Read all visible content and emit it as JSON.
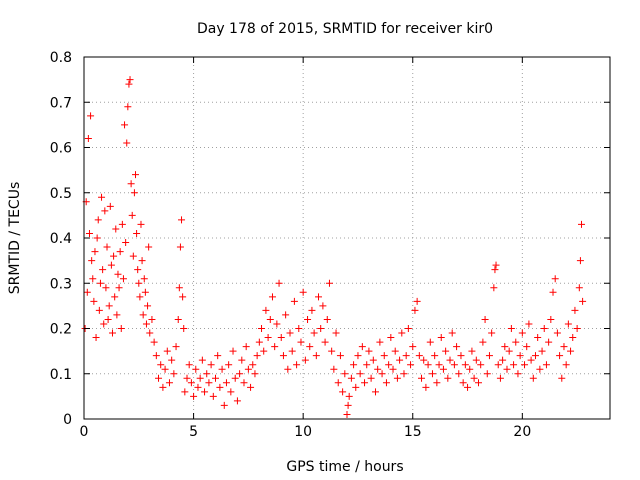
{
  "chart_data": {
    "type": "scatter",
    "title": "Day 178 of 2015, SRMTID for receiver kir0",
    "xlabel": "GPS time / hours",
    "ylabel": "SRMTID / TECUs",
    "xlim": [
      0,
      24
    ],
    "ylim": [
      0,
      0.8
    ],
    "xticks": [
      0,
      5,
      10,
      15,
      20
    ],
    "xtick_labels": [
      "0",
      "5",
      "10",
      "15",
      "20"
    ],
    "yticks": [
      0,
      0.1,
      0.2,
      0.3,
      0.4,
      0.5,
      0.6,
      0.7,
      0.8
    ],
    "ytick_labels": [
      "0",
      "0.1",
      "0.2",
      "0.3",
      "0.4",
      "0.5",
      "0.6",
      "0.7",
      "0.8"
    ],
    "grid": true,
    "marker": "plus",
    "color": "#ff0000",
    "series": [
      {
        "name": "SRMTID",
        "points": [
          [
            0.05,
            0.2
          ],
          [
            0.1,
            0.48
          ],
          [
            0.15,
            0.28
          ],
          [
            0.2,
            0.62
          ],
          [
            0.25,
            0.41
          ],
          [
            0.3,
            0.67
          ],
          [
            0.35,
            0.35
          ],
          [
            0.4,
            0.31
          ],
          [
            0.45,
            0.26
          ],
          [
            0.5,
            0.37
          ],
          [
            0.55,
            0.18
          ],
          [
            0.6,
            0.4
          ],
          [
            0.65,
            0.44
          ],
          [
            0.7,
            0.24
          ],
          [
            0.75,
            0.3
          ],
          [
            0.8,
            0.49
          ],
          [
            0.85,
            0.33
          ],
          [
            0.9,
            0.21
          ],
          [
            0.95,
            0.46
          ],
          [
            1.0,
            0.29
          ],
          [
            1.05,
            0.38
          ],
          [
            1.1,
            0.22
          ],
          [
            1.15,
            0.25
          ],
          [
            1.2,
            0.47
          ],
          [
            1.25,
            0.34
          ],
          [
            1.3,
            0.19
          ],
          [
            1.35,
            0.36
          ],
          [
            1.4,
            0.27
          ],
          [
            1.45,
            0.42
          ],
          [
            1.5,
            0.23
          ],
          [
            1.55,
            0.32
          ],
          [
            1.6,
            0.29
          ],
          [
            1.65,
            0.37
          ],
          [
            1.7,
            0.2
          ],
          [
            1.75,
            0.43
          ],
          [
            1.8,
            0.31
          ],
          [
            1.85,
            0.65
          ],
          [
            1.9,
            0.39
          ],
          [
            1.95,
            0.61
          ],
          [
            2.0,
            0.69
          ],
          [
            2.05,
            0.74
          ],
          [
            2.1,
            0.75
          ],
          [
            2.15,
            0.52
          ],
          [
            2.2,
            0.45
          ],
          [
            2.25,
            0.36
          ],
          [
            2.3,
            0.5
          ],
          [
            2.35,
            0.54
          ],
          [
            2.4,
            0.41
          ],
          [
            2.45,
            0.33
          ],
          [
            2.5,
            0.3
          ],
          [
            2.55,
            0.27
          ],
          [
            2.6,
            0.43
          ],
          [
            2.65,
            0.35
          ],
          [
            2.7,
            0.23
          ],
          [
            2.75,
            0.31
          ],
          [
            2.8,
            0.28
          ],
          [
            2.85,
            0.21
          ],
          [
            2.9,
            0.25
          ],
          [
            2.95,
            0.38
          ],
          [
            3.0,
            0.19
          ],
          [
            3.1,
            0.22
          ],
          [
            3.2,
            0.17
          ],
          [
            3.3,
            0.14
          ],
          [
            3.4,
            0.09
          ],
          [
            3.5,
            0.12
          ],
          [
            3.6,
            0.07
          ],
          [
            3.7,
            0.11
          ],
          [
            3.8,
            0.15
          ],
          [
            3.9,
            0.08
          ],
          [
            4.0,
            0.13
          ],
          [
            4.1,
            0.1
          ],
          [
            4.2,
            0.16
          ],
          [
            4.3,
            0.22
          ],
          [
            4.35,
            0.29
          ],
          [
            4.4,
            0.38
          ],
          [
            4.45,
            0.44
          ],
          [
            4.5,
            0.27
          ],
          [
            4.55,
            0.2
          ],
          [
            4.6,
            0.06
          ],
          [
            4.7,
            0.09
          ],
          [
            4.8,
            0.12
          ],
          [
            4.9,
            0.08
          ],
          [
            5.0,
            0.05
          ],
          [
            5.1,
            0.11
          ],
          [
            5.2,
            0.07
          ],
          [
            5.3,
            0.09
          ],
          [
            5.4,
            0.13
          ],
          [
            5.5,
            0.06
          ],
          [
            5.6,
            0.1
          ],
          [
            5.7,
            0.08
          ],
          [
            5.8,
            0.12
          ],
          [
            5.9,
            0.05
          ],
          [
            6.0,
            0.09
          ],
          [
            6.1,
            0.14
          ],
          [
            6.2,
            0.07
          ],
          [
            6.3,
            0.11
          ],
          [
            6.4,
            0.03
          ],
          [
            6.5,
            0.08
          ],
          [
            6.6,
            0.12
          ],
          [
            6.7,
            0.06
          ],
          [
            6.8,
            0.15
          ],
          [
            6.9,
            0.09
          ],
          [
            7.0,
            0.04
          ],
          [
            7.1,
            0.1
          ],
          [
            7.2,
            0.13
          ],
          [
            7.3,
            0.08
          ],
          [
            7.4,
            0.16
          ],
          [
            7.5,
            0.11
          ],
          [
            7.6,
            0.07
          ],
          [
            7.7,
            0.12
          ],
          [
            7.8,
            0.1
          ],
          [
            7.9,
            0.14
          ],
          [
            8.0,
            0.17
          ],
          [
            8.1,
            0.2
          ],
          [
            8.2,
            0.15
          ],
          [
            8.3,
            0.24
          ],
          [
            8.4,
            0.18
          ],
          [
            8.5,
            0.22
          ],
          [
            8.6,
            0.27
          ],
          [
            8.7,
            0.16
          ],
          [
            8.8,
            0.21
          ],
          [
            8.9,
            0.3
          ],
          [
            9.0,
            0.18
          ],
          [
            9.1,
            0.14
          ],
          [
            9.2,
            0.23
          ],
          [
            9.3,
            0.11
          ],
          [
            9.4,
            0.19
          ],
          [
            9.5,
            0.15
          ],
          [
            9.6,
            0.26
          ],
          [
            9.7,
            0.12
          ],
          [
            9.8,
            0.2
          ],
          [
            9.9,
            0.17
          ],
          [
            10.0,
            0.28
          ],
          [
            10.1,
            0.13
          ],
          [
            10.2,
            0.22
          ],
          [
            10.3,
            0.16
          ],
          [
            10.4,
            0.24
          ],
          [
            10.5,
            0.19
          ],
          [
            10.6,
            0.14
          ],
          [
            10.7,
            0.27
          ],
          [
            10.8,
            0.2
          ],
          [
            10.9,
            0.25
          ],
          [
            11.0,
            0.17
          ],
          [
            11.1,
            0.22
          ],
          [
            11.2,
            0.3
          ],
          [
            11.3,
            0.15
          ],
          [
            11.4,
            0.11
          ],
          [
            11.5,
            0.19
          ],
          [
            11.6,
            0.08
          ],
          [
            11.7,
            0.14
          ],
          [
            11.8,
            0.06
          ],
          [
            11.9,
            0.1
          ],
          [
            12.0,
            0.01
          ],
          [
            12.05,
            0.03
          ],
          [
            12.1,
            0.05
          ],
          [
            12.2,
            0.09
          ],
          [
            12.3,
            0.12
          ],
          [
            12.4,
            0.07
          ],
          [
            12.5,
            0.14
          ],
          [
            12.6,
            0.1
          ],
          [
            12.7,
            0.16
          ],
          [
            12.8,
            0.08
          ],
          [
            12.9,
            0.12
          ],
          [
            13.0,
            0.15
          ],
          [
            13.1,
            0.09
          ],
          [
            13.2,
            0.13
          ],
          [
            13.3,
            0.06
          ],
          [
            13.4,
            0.11
          ],
          [
            13.5,
            0.17
          ],
          [
            13.6,
            0.1
          ],
          [
            13.7,
            0.14
          ],
          [
            13.8,
            0.08
          ],
          [
            13.9,
            0.12
          ],
          [
            14.0,
            0.18
          ],
          [
            14.1,
            0.11
          ],
          [
            14.2,
            0.15
          ],
          [
            14.3,
            0.09
          ],
          [
            14.4,
            0.13
          ],
          [
            14.5,
            0.19
          ],
          [
            14.6,
            0.1
          ],
          [
            14.7,
            0.14
          ],
          [
            14.8,
            0.2
          ],
          [
            14.9,
            0.12
          ],
          [
            15.0,
            0.16
          ],
          [
            15.1,
            0.24
          ],
          [
            15.2,
            0.26
          ],
          [
            15.3,
            0.14
          ],
          [
            15.4,
            0.09
          ],
          [
            15.5,
            0.13
          ],
          [
            15.6,
            0.07
          ],
          [
            15.7,
            0.12
          ],
          [
            15.8,
            0.17
          ],
          [
            15.9,
            0.1
          ],
          [
            16.0,
            0.14
          ],
          [
            16.1,
            0.08
          ],
          [
            16.2,
            0.12
          ],
          [
            16.3,
            0.18
          ],
          [
            16.4,
            0.11
          ],
          [
            16.5,
            0.15
          ],
          [
            16.6,
            0.09
          ],
          [
            16.7,
            0.13
          ],
          [
            16.8,
            0.19
          ],
          [
            16.9,
            0.12
          ],
          [
            17.0,
            0.16
          ],
          [
            17.1,
            0.1
          ],
          [
            17.2,
            0.14
          ],
          [
            17.3,
            0.08
          ],
          [
            17.4,
            0.12
          ],
          [
            17.5,
            0.07
          ],
          [
            17.6,
            0.11
          ],
          [
            17.7,
            0.15
          ],
          [
            17.8,
            0.09
          ],
          [
            17.9,
            0.13
          ],
          [
            18.0,
            0.08
          ],
          [
            18.1,
            0.12
          ],
          [
            18.2,
            0.17
          ],
          [
            18.3,
            0.22
          ],
          [
            18.4,
            0.1
          ],
          [
            18.5,
            0.14
          ],
          [
            18.6,
            0.19
          ],
          [
            18.7,
            0.29
          ],
          [
            18.75,
            0.33
          ],
          [
            18.8,
            0.34
          ],
          [
            18.9,
            0.12
          ],
          [
            19.0,
            0.09
          ],
          [
            19.1,
            0.13
          ],
          [
            19.2,
            0.16
          ],
          [
            19.3,
            0.11
          ],
          [
            19.4,
            0.15
          ],
          [
            19.5,
            0.2
          ],
          [
            19.6,
            0.12
          ],
          [
            19.7,
            0.17
          ],
          [
            19.8,
            0.1
          ],
          [
            19.9,
            0.14
          ],
          [
            20.0,
            0.19
          ],
          [
            20.1,
            0.12
          ],
          [
            20.2,
            0.16
          ],
          [
            20.3,
            0.21
          ],
          [
            20.4,
            0.13
          ],
          [
            20.5,
            0.09
          ],
          [
            20.6,
            0.14
          ],
          [
            20.7,
            0.18
          ],
          [
            20.8,
            0.11
          ],
          [
            20.9,
            0.15
          ],
          [
            21.0,
            0.2
          ],
          [
            21.1,
            0.12
          ],
          [
            21.2,
            0.17
          ],
          [
            21.3,
            0.22
          ],
          [
            21.4,
            0.28
          ],
          [
            21.5,
            0.31
          ],
          [
            21.6,
            0.19
          ],
          [
            21.7,
            0.14
          ],
          [
            21.8,
            0.09
          ],
          [
            21.9,
            0.16
          ],
          [
            22.0,
            0.12
          ],
          [
            22.1,
            0.21
          ],
          [
            22.2,
            0.15
          ],
          [
            22.3,
            0.18
          ],
          [
            22.4,
            0.24
          ],
          [
            22.5,
            0.2
          ],
          [
            22.6,
            0.29
          ],
          [
            22.65,
            0.35
          ],
          [
            22.7,
            0.43
          ],
          [
            22.75,
            0.26
          ]
        ]
      }
    ]
  }
}
